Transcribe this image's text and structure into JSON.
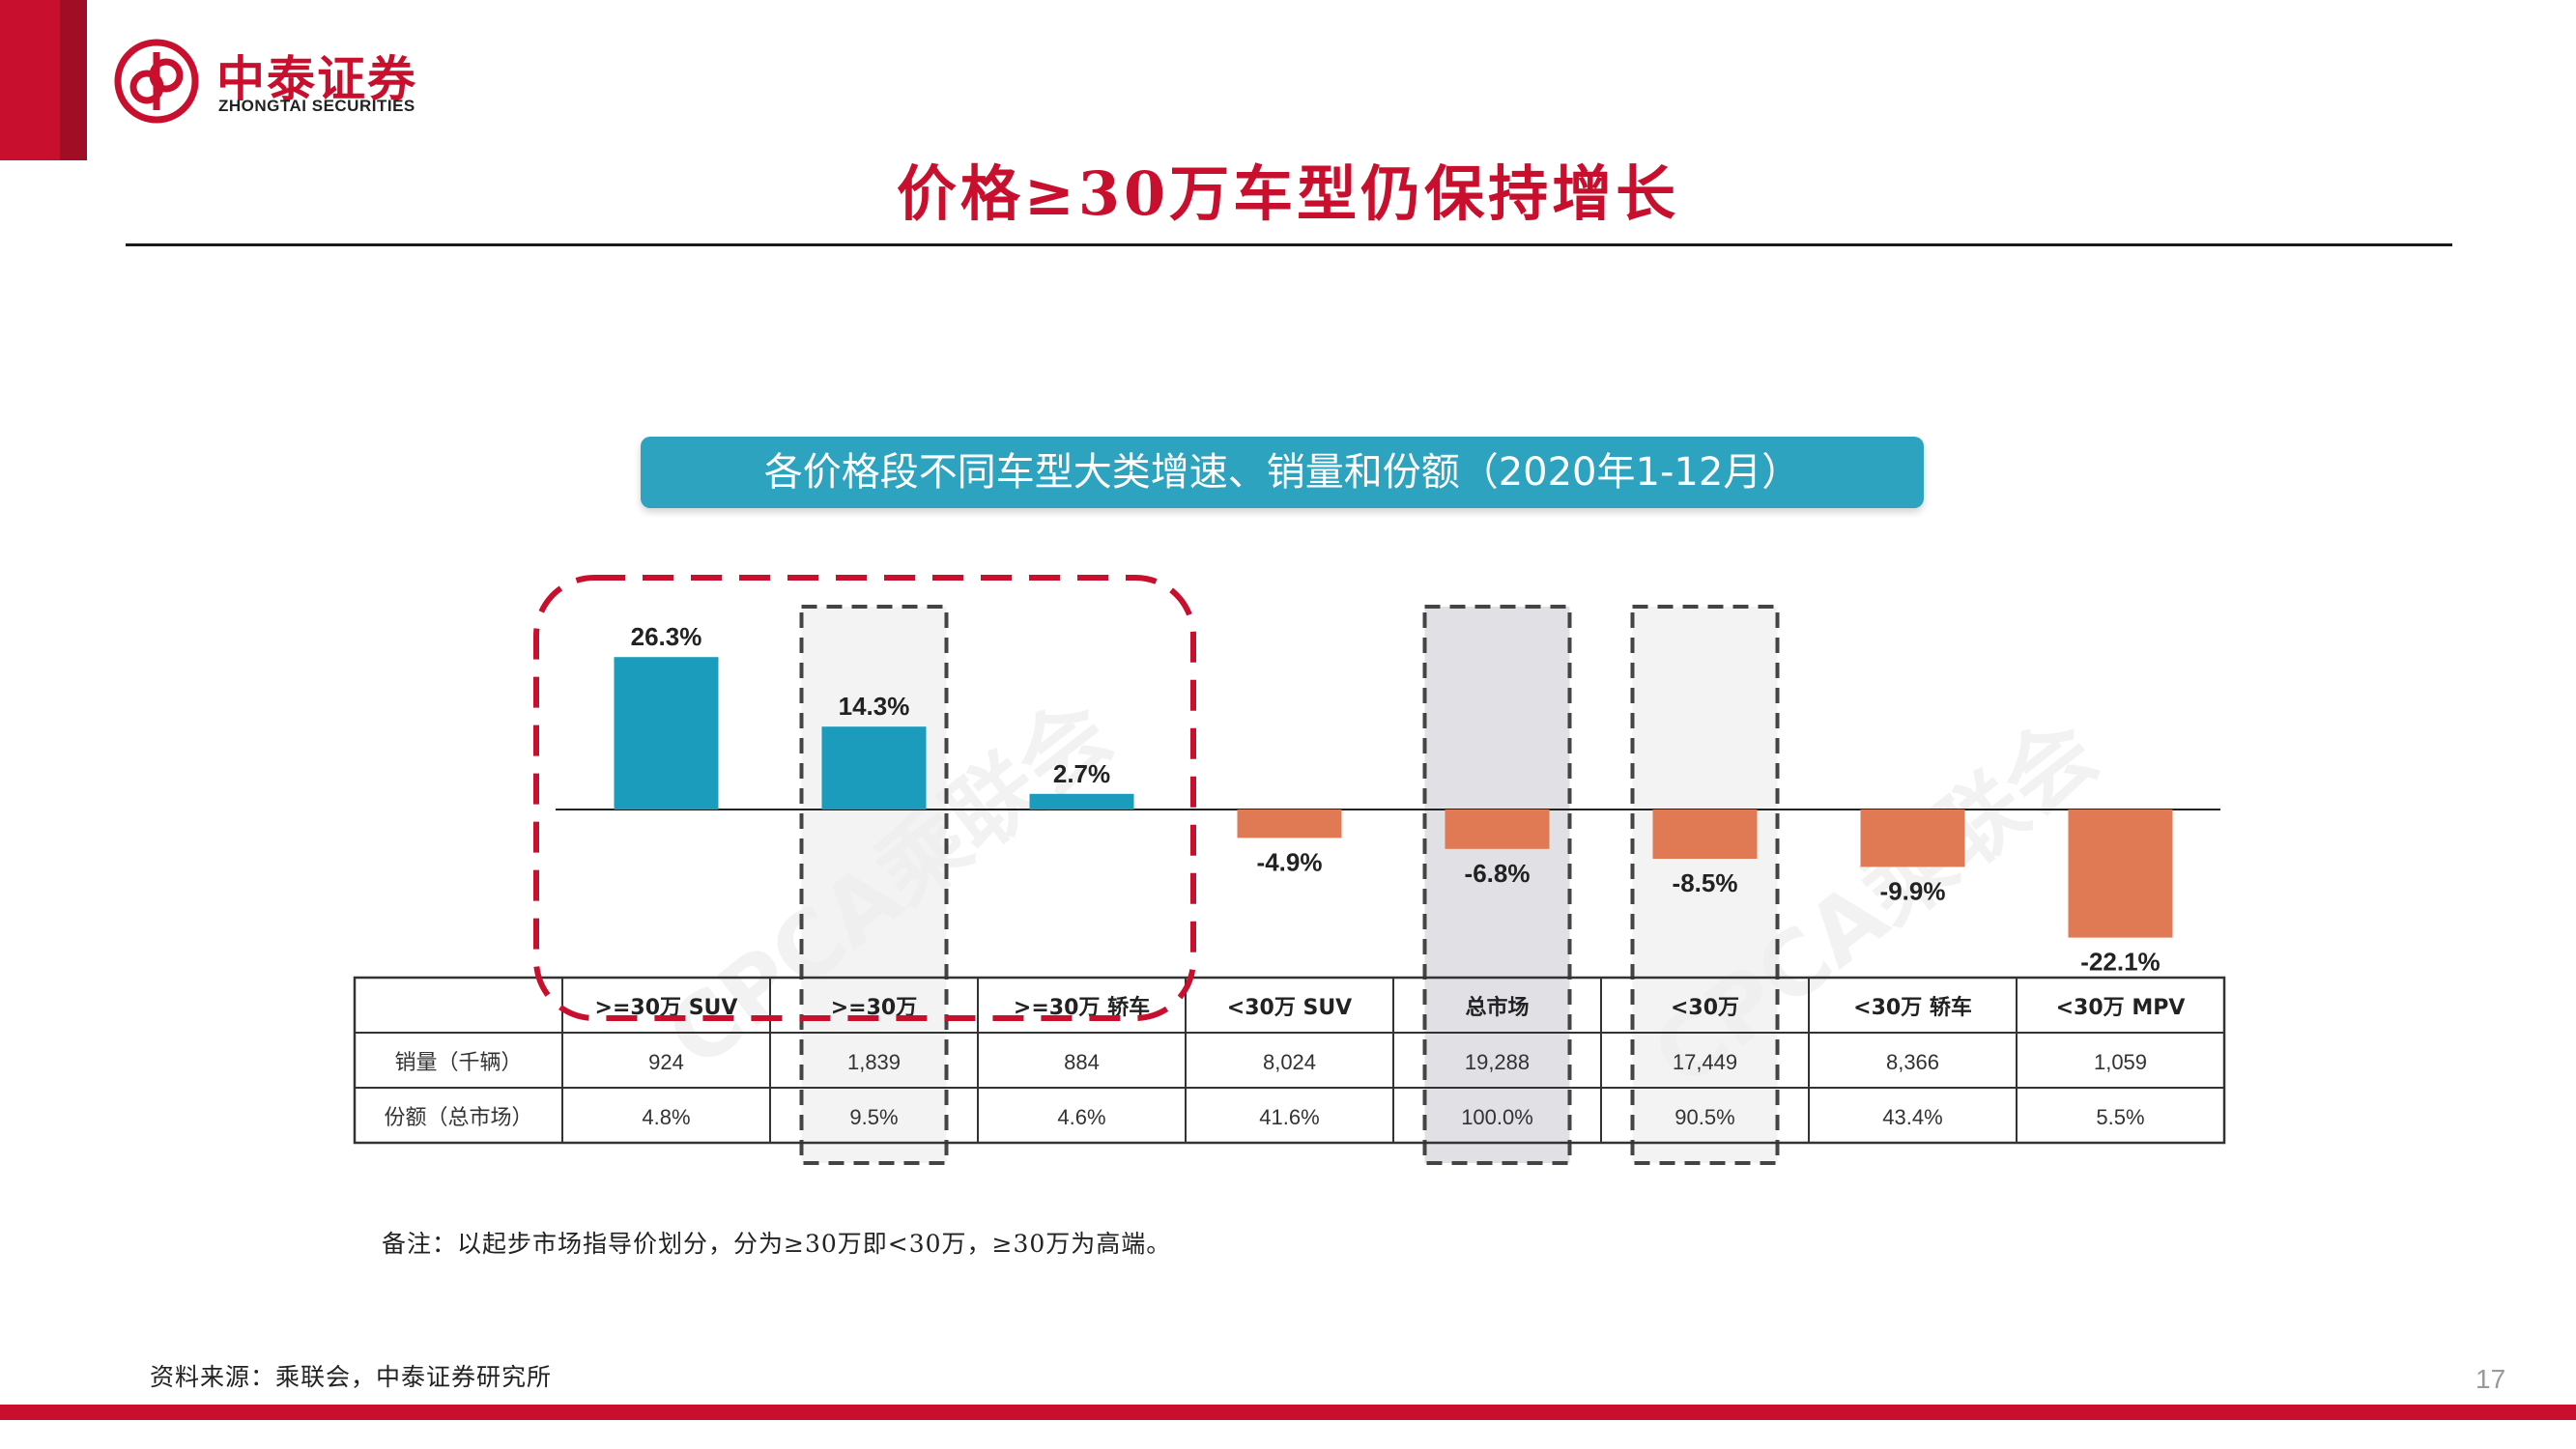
{
  "brand": {
    "name_cn": "中泰证券",
    "name_en": "ZHONGTAI SECURITIES",
    "color": "#c8102e"
  },
  "page": {
    "title": "价格≥30万车型仍保持增长",
    "note": "备注：以起步市场指导价划分，分为≥30万即<30万，≥30万为高端。",
    "source": "资料来源：乘联会，中泰证券研究所",
    "page_number": "17"
  },
  "chart_data": {
    "type": "bar",
    "title": "各价格段不同车型大类增速、销量和份额（2020年1-12月）",
    "categories": [
      ">=30万 SUV",
      ">=30万",
      ">=30万 轿车",
      "<30万 SUV",
      "总市场",
      "<30万",
      "<30万 轿车",
      "<30万 MPV"
    ],
    "values": [
      26.3,
      14.3,
      2.7,
      -4.9,
      -6.8,
      -8.5,
      -9.9,
      -22.1
    ],
    "value_labels": [
      "26.3%",
      "14.3%",
      "2.7%",
      "-4.9%",
      "-6.8%",
      "-8.5%",
      "-9.9%",
      "-22.1%"
    ],
    "unit": "%",
    "positive_color": "#1b9cbc",
    "negative_color": "#e07a55",
    "watermark": "CPCA乘联会",
    "table": {
      "rows": [
        {
          "label": "销量（千辆）",
          "values": [
            "924",
            "1,839",
            "884",
            "8,024",
            "19,288",
            "17,449",
            "8,366",
            "1,059"
          ]
        },
        {
          "label": "份额（总市场）",
          "values": [
            "4.8%",
            "9.5%",
            "4.6%",
            "41.6%",
            "100.0%",
            "90.5%",
            "43.4%",
            "5.5%"
          ]
        }
      ]
    },
    "highlight": {
      "red_dashed_group": [
        ">=30万 SUV",
        ">=30万",
        ">=30万 轿车"
      ],
      "gray_dashed_columns": [
        ">=30万",
        "总市场",
        "<30万"
      ],
      "red_color": "#c8102e"
    }
  }
}
